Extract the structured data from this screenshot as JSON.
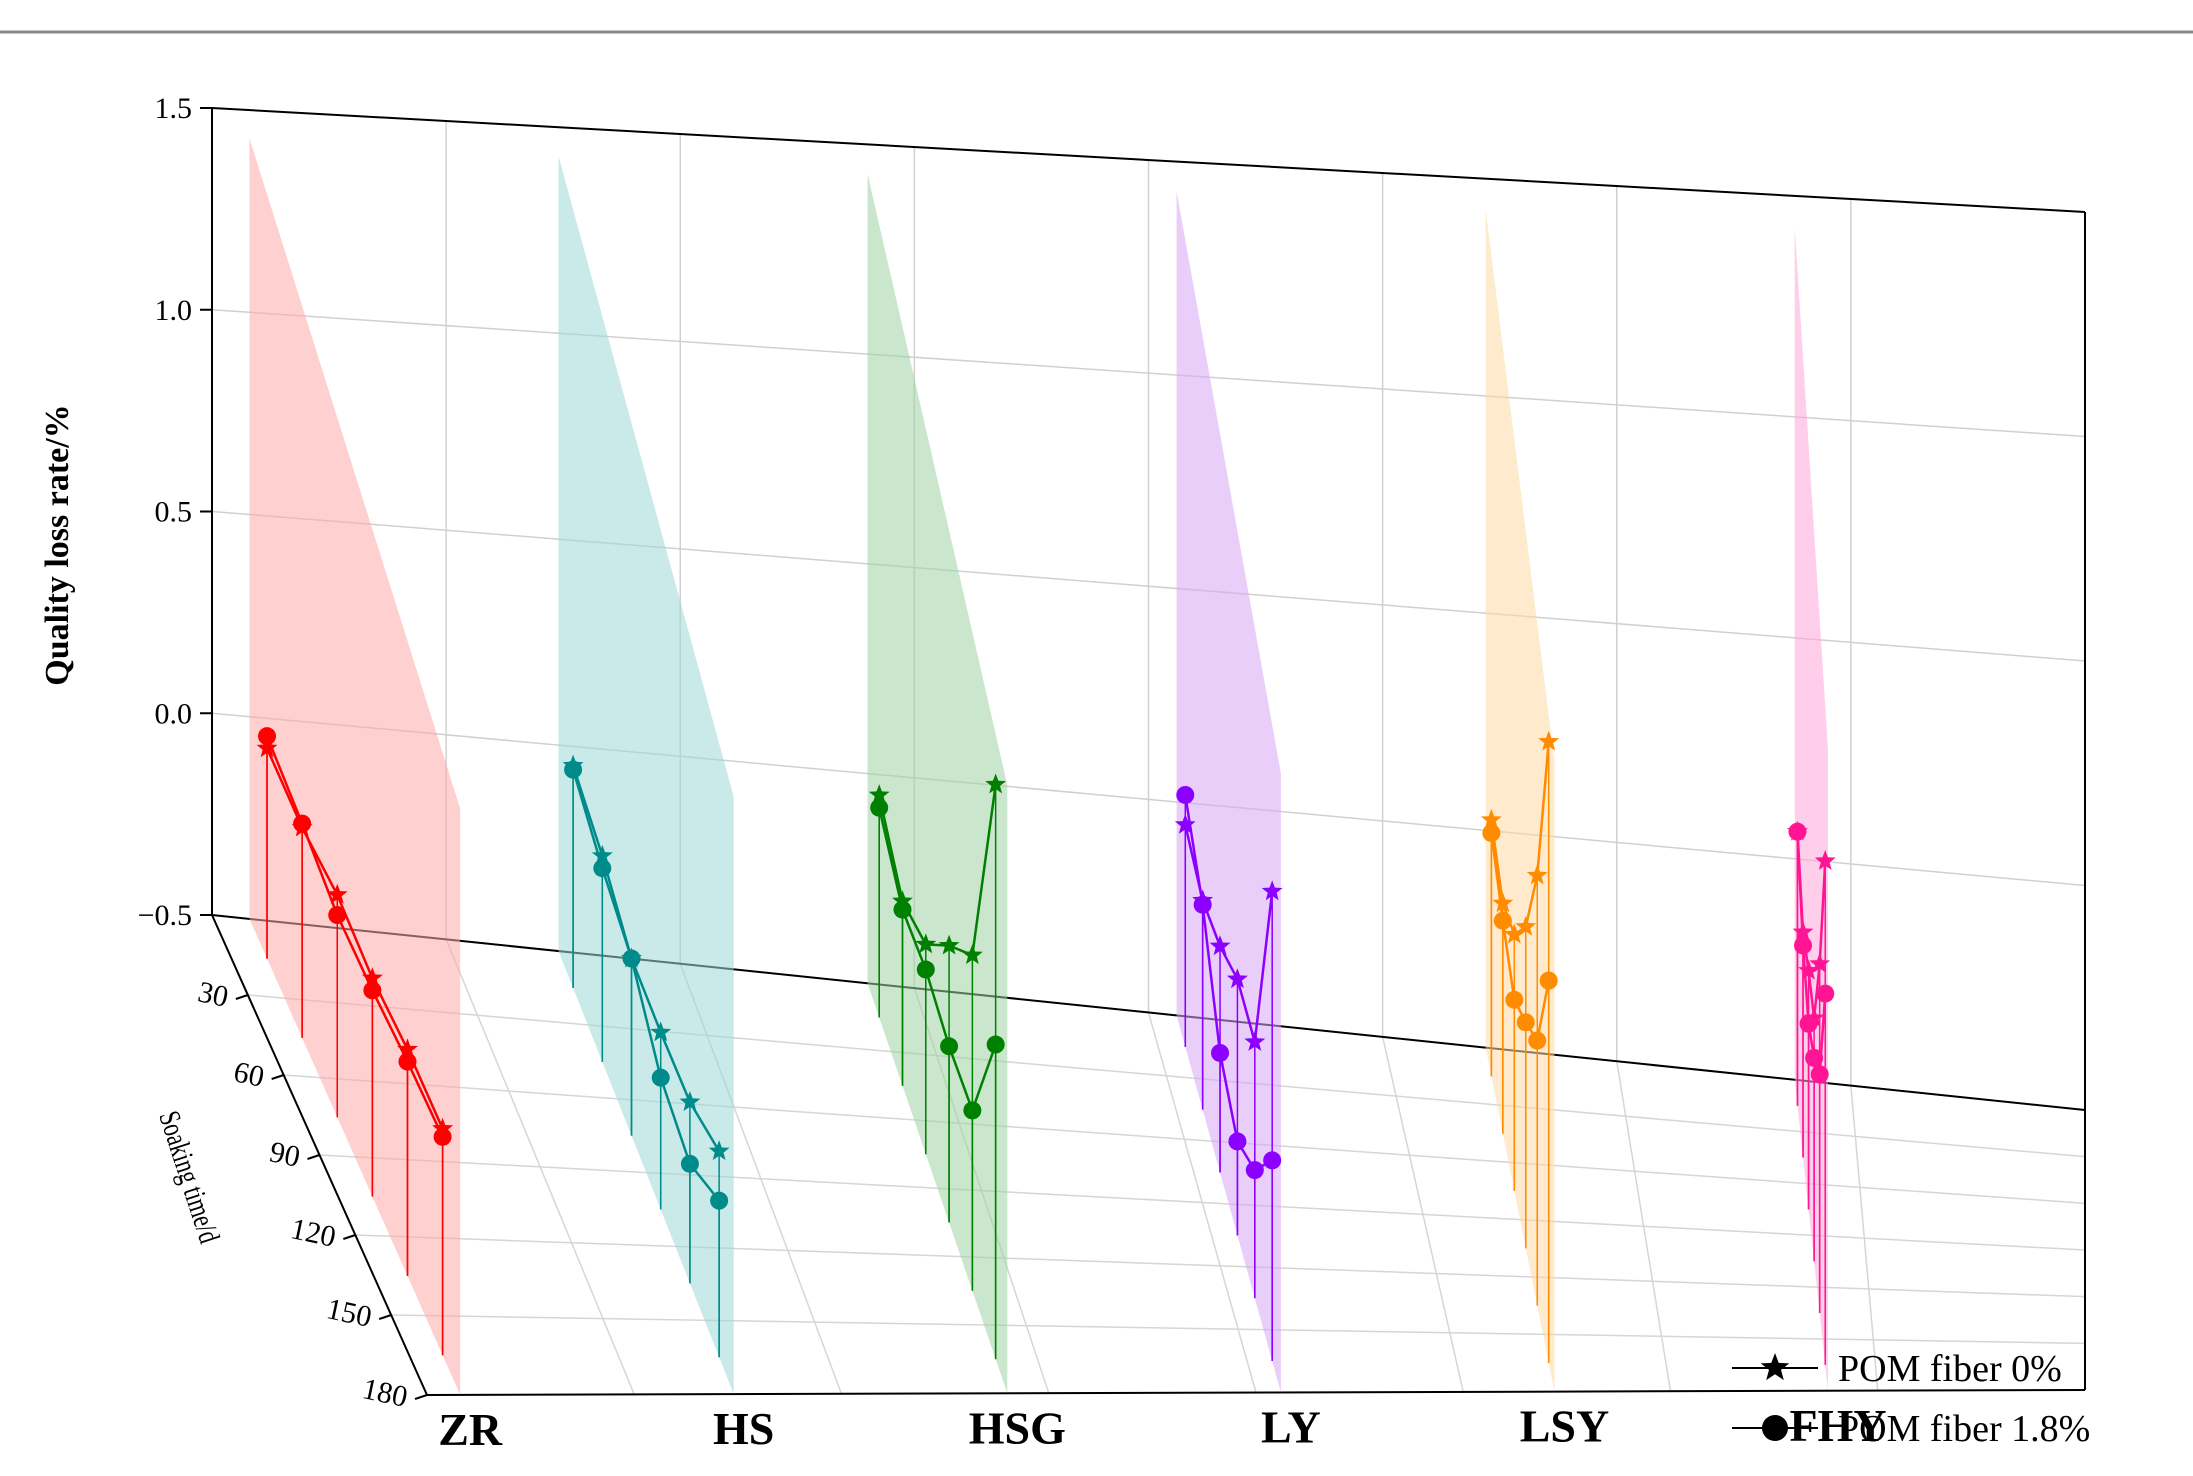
{
  "chart_data": {
    "type": "line",
    "projection": "3d",
    "title": "",
    "zlabel": "Quality loss rate/%",
    "ylabel": "Soaking time/d",
    "zlim": [
      -0.5,
      1.5
    ],
    "z_ticks": [
      "−0.5",
      "0.0",
      "0.5",
      "1.0",
      "1.5"
    ],
    "z_tick_values": [
      -0.5,
      0.0,
      0.5,
      1.0,
      1.5
    ],
    "time_ticks": [
      30,
      60,
      90,
      120,
      150,
      180
    ],
    "categories": [
      "ZR",
      "HS",
      "HSG",
      "LY",
      "LSY",
      "FHY"
    ],
    "colors": {
      "ZR": "#ff0000",
      "HS": "#008b8b",
      "HSG": "#008000",
      "LY": "#8b00ff",
      "LSY": "#ff8c00",
      "FHY": "#ff1493"
    },
    "panel_colors": {
      "ZR": "#ffaaaa",
      "HS": "#9fd9d9",
      "HSG": "#9fd3a6",
      "LY": "#d9a6f5",
      "LSY": "#ffd9a6",
      "FHY": "#ffa6d9"
    },
    "series": [
      {
        "category": "ZR",
        "name": "POM fiber 0%",
        "marker": "star",
        "x": [
          0,
          30,
          60,
          90,
          120,
          150
        ],
        "values": [
          0.02,
          0.02,
          0.05,
          0.04,
          0.06,
          0.06
        ]
      },
      {
        "category": "ZR",
        "name": "POM fiber 1.8%",
        "marker": "circle",
        "x": [
          0,
          30,
          60,
          90,
          120,
          150
        ],
        "values": [
          0.05,
          0.03,
          0.0,
          0.01,
          0.03,
          0.04
        ]
      },
      {
        "category": "HS",
        "name": "POM fiber 0%",
        "marker": "star",
        "x": [
          0,
          30,
          60,
          90,
          120,
          150
        ],
        "values": [
          0.04,
          0.0,
          -0.07,
          -0.07,
          -0.06,
          0.0
        ]
      },
      {
        "category": "HS",
        "name": "POM fiber 1.8%",
        "marker": "circle",
        "x": [
          0,
          30,
          60,
          90,
          120,
          150
        ],
        "values": [
          0.03,
          -0.03,
          -0.07,
          -0.18,
          -0.21,
          -0.12
        ]
      },
      {
        "category": "HSG",
        "name": "POM fiber 0%",
        "marker": "star",
        "x": [
          0,
          30,
          60,
          90,
          120,
          150
        ],
        "values": [
          0.03,
          -0.06,
          0.0,
          0.16,
          0.3,
          0.87
        ]
      },
      {
        "category": "HSG",
        "name": "POM fiber 1.8%",
        "marker": "circle",
        "x": [
          0,
          30,
          60,
          90,
          120,
          150
        ],
        "values": [
          0.0,
          -0.08,
          -0.06,
          -0.08,
          -0.07,
          0.25
        ]
      },
      {
        "category": "LY",
        "name": "POM fiber 0%",
        "marker": "star",
        "x": [
          0,
          30,
          60,
          90,
          120,
          150
        ],
        "values": [
          0.02,
          -0.01,
          0.03,
          0.1,
          0.1,
          0.6
        ]
      },
      {
        "category": "LY",
        "name": "POM fiber 1.8%",
        "marker": "circle",
        "x": [
          0,
          30,
          60,
          90,
          120,
          150
        ],
        "values": [
          0.09,
          -0.02,
          -0.22,
          -0.28,
          -0.2,
          -0.03
        ]
      },
      {
        "category": "LSY",
        "name": "POM fiber 0%",
        "marker": "star",
        "x": [
          0,
          30,
          60,
          90,
          120,
          150
        ],
        "values": [
          0.09,
          0.03,
          0.09,
          0.24,
          0.49,
          0.93
        ]
      },
      {
        "category": "LSY",
        "name": "POM fiber 1.8%",
        "marker": "circle",
        "x": [
          0,
          30,
          60,
          90,
          120,
          150
        ],
        "values": [
          0.06,
          -0.01,
          -0.06,
          0.02,
          0.11,
          0.38
        ]
      },
      {
        "category": "FHY",
        "name": "POM fiber 0%",
        "marker": "star",
        "x": [
          0,
          30,
          60,
          90,
          120,
          150
        ],
        "values": [
          0.12,
          0.01,
          0.04,
          0.05,
          0.29,
          0.64
        ]
      },
      {
        "category": "FHY",
        "name": "POM fiber 1.8%",
        "marker": "circle",
        "x": [
          0,
          30,
          60,
          90,
          120,
          150
        ],
        "values": [
          0.12,
          -0.02,
          -0.08,
          -0.04,
          0.04,
          0.34
        ]
      }
    ],
    "legend": {
      "position": "bottom-right",
      "entries": [
        {
          "label": "POM fiber 0%",
          "marker": "star"
        },
        {
          "label": "POM fiber 1.8%",
          "marker": "circle"
        }
      ]
    },
    "grid": true
  }
}
